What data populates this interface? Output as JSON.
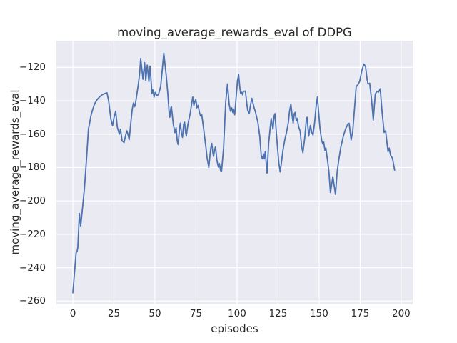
{
  "chart_data": {
    "type": "line",
    "title": "moving_average_rewards_eval of DDPG",
    "xlabel": "episodes",
    "ylabel": "moving_average_rewards_eval",
    "x_ticks": [
      0,
      25,
      50,
      75,
      100,
      125,
      150,
      175,
      200
    ],
    "y_ticks": [
      -120,
      -140,
      -160,
      -180,
      -200,
      -220,
      -240,
      -260
    ],
    "xlim": [
      -10,
      207
    ],
    "ylim": [
      -262,
      -104
    ],
    "grid": true,
    "legend_position": "none",
    "colors": {
      "line": "#4c72b0",
      "plot_background": "#eaeaf2",
      "grid": "#ffffff",
      "text": "#262626",
      "figure_background": "#ffffff"
    },
    "series": [
      {
        "name": "moving_average_rewards_eval",
        "color": "#4c72b0",
        "points": [
          [
            0,
            -255
          ],
          [
            1,
            -243
          ],
          [
            2,
            -231
          ],
          [
            2.6,
            -230
          ],
          [
            3,
            -228
          ],
          [
            4,
            -207.5
          ],
          [
            4.8,
            -215
          ],
          [
            6,
            -203
          ],
          [
            7,
            -193
          ],
          [
            8.4,
            -174
          ],
          [
            9.5,
            -157
          ],
          [
            10.3,
            -153
          ],
          [
            11,
            -149
          ],
          [
            12,
            -145.5
          ],
          [
            13,
            -142.5
          ],
          [
            14,
            -140.5
          ],
          [
            15,
            -139
          ],
          [
            16.5,
            -137.5
          ],
          [
            18,
            -136.3
          ],
          [
            19.5,
            -135.7
          ],
          [
            20.8,
            -135.2
          ],
          [
            21.8,
            -140
          ],
          [
            22.5,
            -145.5
          ],
          [
            23.2,
            -151
          ],
          [
            24.2,
            -155
          ],
          [
            25.1,
            -150
          ],
          [
            26.1,
            -146.3
          ],
          [
            27.1,
            -156
          ],
          [
            28.3,
            -160
          ],
          [
            29,
            -157
          ],
          [
            30,
            -164
          ],
          [
            31.2,
            -165
          ],
          [
            32.3,
            -160
          ],
          [
            32.9,
            -158
          ],
          [
            33.8,
            -161
          ],
          [
            34.3,
            -163.3
          ],
          [
            35.5,
            -151.3
          ],
          [
            36.2,
            -145
          ],
          [
            36.9,
            -141.4
          ],
          [
            37.7,
            -143.5
          ],
          [
            38.4,
            -140
          ],
          [
            39.8,
            -130.7
          ],
          [
            40.6,
            -124.3
          ],
          [
            41.3,
            -114.6
          ],
          [
            42.7,
            -127.1
          ],
          [
            43.7,
            -117.2
          ],
          [
            44.4,
            -127.8
          ],
          [
            45.3,
            -118.6
          ],
          [
            46.3,
            -128.5
          ],
          [
            47,
            -119.3
          ],
          [
            48.2,
            -135.6
          ],
          [
            48.8,
            -133.5
          ],
          [
            49.5,
            -137.8
          ],
          [
            50.2,
            -135
          ],
          [
            51.1,
            -136.8
          ],
          [
            52.1,
            -136.4
          ],
          [
            53.5,
            -131.4
          ],
          [
            55.4,
            -111.5
          ],
          [
            56.9,
            -125
          ],
          [
            57.9,
            -136.4
          ],
          [
            58.6,
            -146.3
          ],
          [
            59,
            -149.9
          ],
          [
            59.7,
            -144.2
          ],
          [
            60,
            -143.5
          ],
          [
            61.2,
            -154.1
          ],
          [
            62.2,
            -159.1
          ],
          [
            62.9,
            -156.2
          ],
          [
            63.6,
            -164.1
          ],
          [
            64.1,
            -166.2
          ],
          [
            65.1,
            -155.5
          ],
          [
            65.5,
            -153.4
          ],
          [
            66.2,
            -159.8
          ],
          [
            66.8,
            -161.9
          ],
          [
            67.5,
            -154.1
          ],
          [
            68,
            -152.8
          ],
          [
            68.7,
            -159.1
          ],
          [
            69.1,
            -161.2
          ],
          [
            70.1,
            -154.1
          ],
          [
            71.6,
            -147
          ],
          [
            72.3,
            -142
          ],
          [
            73,
            -137.8
          ],
          [
            73.7,
            -142.8
          ],
          [
            74.5,
            -140
          ],
          [
            74.9,
            -139.2
          ],
          [
            75.6,
            -144.2
          ],
          [
            76.3,
            -142.8
          ],
          [
            77.1,
            -147
          ],
          [
            77.8,
            -149.1
          ],
          [
            78.5,
            -148.4
          ],
          [
            79.5,
            -155.5
          ],
          [
            80.2,
            -161.2
          ],
          [
            81,
            -167.6
          ],
          [
            81.7,
            -174
          ],
          [
            82.8,
            -180
          ],
          [
            83.9,
            -169
          ],
          [
            84.6,
            -165.5
          ],
          [
            85.3,
            -171.2
          ],
          [
            85.7,
            -173.3
          ],
          [
            86.4,
            -169
          ],
          [
            86.9,
            -167.6
          ],
          [
            87.7,
            -175.5
          ],
          [
            88.6,
            -179.7
          ],
          [
            89.2,
            -177.6
          ],
          [
            90,
            -181.9
          ],
          [
            90.6,
            -182
          ],
          [
            91.8,
            -168.3
          ],
          [
            93.1,
            -140.6
          ],
          [
            94.2,
            -130
          ],
          [
            95.2,
            -142
          ],
          [
            96,
            -146.3
          ],
          [
            96.7,
            -144.2
          ],
          [
            97.4,
            -147
          ],
          [
            97.8,
            -144.9
          ],
          [
            98.6,
            -148.4
          ],
          [
            99.6,
            -136.4
          ],
          [
            100.3,
            -127.8
          ],
          [
            101,
            -124.3
          ],
          [
            101.7,
            -132.1
          ],
          [
            102.2,
            -135.6
          ],
          [
            102.9,
            -134.9
          ],
          [
            103.4,
            -136.4
          ],
          [
            103.9,
            -134.3
          ],
          [
            105.1,
            -134.2
          ],
          [
            106,
            -142
          ],
          [
            106.5,
            -145.7
          ],
          [
            107.4,
            -147.8
          ],
          [
            108,
            -144
          ],
          [
            109,
            -138.5
          ],
          [
            110.4,
            -144.2
          ],
          [
            111.3,
            -147
          ],
          [
            112.7,
            -153
          ],
          [
            113.8,
            -161
          ],
          [
            114.7,
            -172.6
          ],
          [
            115.4,
            -174.8
          ],
          [
            116.2,
            -171.9
          ],
          [
            116.6,
            -174.8
          ],
          [
            117.2,
            -170.5
          ],
          [
            118.3,
            -183.3
          ],
          [
            119.3,
            -165.5
          ],
          [
            120.2,
            -156.2
          ],
          [
            120.8,
            -150.6
          ],
          [
            121.9,
            -157
          ],
          [
            122.6,
            -149.1
          ],
          [
            123.1,
            -147.7
          ],
          [
            124.1,
            -161.2
          ],
          [
            124.8,
            -169.7
          ],
          [
            125.5,
            -177.6
          ],
          [
            126.3,
            -182.6
          ],
          [
            127,
            -177.6
          ],
          [
            128,
            -169.7
          ],
          [
            129.1,
            -163.3
          ],
          [
            130.3,
            -158.4
          ],
          [
            131.3,
            -152.8
          ],
          [
            132,
            -146.3
          ],
          [
            132.8,
            -142
          ],
          [
            133.5,
            -148.4
          ],
          [
            134.2,
            -153.4
          ],
          [
            134.9,
            -147.7
          ],
          [
            135.4,
            -147
          ],
          [
            136.1,
            -152
          ],
          [
            136.7,
            -150.6
          ],
          [
            137.5,
            -155.5
          ],
          [
            138.5,
            -158.4
          ],
          [
            139.3,
            -167
          ],
          [
            140.1,
            -171.1
          ],
          [
            141.3,
            -161.9
          ],
          [
            142.3,
            -150.6
          ],
          [
            142.7,
            -149.9
          ],
          [
            143.7,
            -161.2
          ],
          [
            144.7,
            -154.8
          ],
          [
            145.6,
            -159.1
          ],
          [
            146.3,
            -160.5
          ],
          [
            147.3,
            -152.8
          ],
          [
            148.2,
            -143
          ],
          [
            149,
            -137.8
          ],
          [
            150.5,
            -156.4
          ],
          [
            151.6,
            -164
          ],
          [
            152.4,
            -166.1
          ],
          [
            152.8,
            -164.7
          ],
          [
            153.5,
            -169.7
          ],
          [
            154.1,
            -168.3
          ],
          [
            155.3,
            -176.9
          ],
          [
            156,
            -182.6
          ],
          [
            156.9,
            -195
          ],
          [
            158.4,
            -185.4
          ],
          [
            160,
            -196.1
          ],
          [
            161,
            -182.6
          ],
          [
            162,
            -175.4
          ],
          [
            163.2,
            -167.9
          ],
          [
            164.7,
            -161.5
          ],
          [
            166.1,
            -157
          ],
          [
            167.5,
            -154
          ],
          [
            168.3,
            -153.5
          ],
          [
            169.5,
            -163.5
          ],
          [
            170.5,
            -158
          ],
          [
            171.3,
            -148
          ],
          [
            172.6,
            -131.4
          ],
          [
            173.5,
            -130.5
          ],
          [
            174.7,
            -128.5
          ],
          [
            176,
            -122
          ],
          [
            177.3,
            -118
          ],
          [
            178.3,
            -119.5
          ],
          [
            179.2,
            -127
          ],
          [
            179.8,
            -130
          ],
          [
            180.8,
            -129.5
          ],
          [
            181.9,
            -139
          ],
          [
            183,
            -151.5
          ],
          [
            184.2,
            -136
          ],
          [
            185.3,
            -134.3
          ],
          [
            186.2,
            -134.8
          ],
          [
            187.2,
            -132.8
          ],
          [
            188.4,
            -147
          ],
          [
            189.6,
            -159
          ],
          [
            190.5,
            -158
          ],
          [
            191.3,
            -164.8
          ],
          [
            192,
            -170.5
          ],
          [
            192.7,
            -168.3
          ],
          [
            193.5,
            -172.6
          ],
          [
            194.7,
            -174.5
          ],
          [
            196,
            -181.5
          ]
        ]
      }
    ]
  }
}
